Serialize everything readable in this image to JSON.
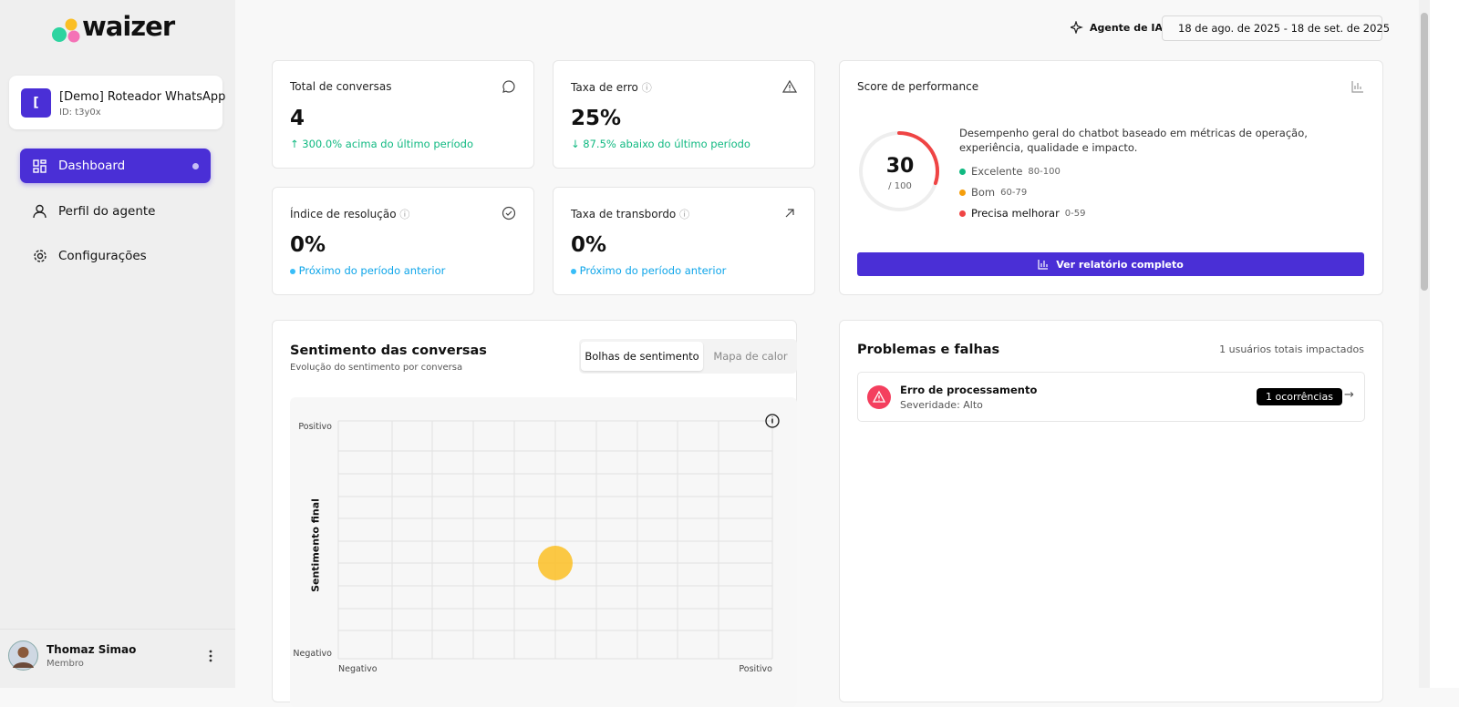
{
  "sidebar": {
    "logo": "waizer",
    "workspace": {
      "icon": "[",
      "name": "[Demo] Roteador WhatsApp",
      "id": "ID: t3y0x"
    },
    "nav": [
      "Dashboard",
      "Perfil do agente",
      "Configurações"
    ],
    "user": {
      "name": "Thomaz Simao",
      "role": "Membro"
    }
  },
  "header": {
    "ai_agent": "Agente de IA",
    "date_range": "18 de ago. de 2025 - 18 de set. de 2025"
  },
  "metrics": [
    {
      "title": "Total de conversas",
      "value": "4",
      "change": "300.0% acima do último período"
    },
    {
      "title": "Taxa de erro",
      "value": "25%",
      "change": "87.5% abaixo do último período"
    },
    {
      "title": "Índice de resolução",
      "value": "0%",
      "change": "Próximo do período anterior"
    },
    {
      "title": "Taxa de transbordo",
      "value": "0%",
      "change": "Próximo do período anterior"
    }
  ],
  "performance": {
    "title": "Score de performance",
    "score": 30,
    "score_max": {
      "value": 100,
      "label": "/ 100"
    },
    "description": "Desempenho geral do chatbot baseado em métricas de operação, experiência, qualidade e impacto.",
    "legend": [
      {
        "label": "Excelente",
        "range": "80-100",
        "color": "#10b981"
      },
      {
        "label": "Bom",
        "range": "60-79",
        "color": "#f59e0b"
      },
      {
        "label": "Precisa melhorar",
        "range": "0-59",
        "color": "#ef4444"
      }
    ],
    "button": "Ver relatório completo"
  },
  "sentiment": {
    "title": "Sentimento das conversas",
    "subtitle": "Evolução do sentimento por conversa",
    "tabs": [
      "Bolhas de sentimento",
      "Mapa de calor"
    ],
    "y_axis_label": "Sentimento final",
    "y_top": "Positivo",
    "y_bottom": "Negativo",
    "x_left": "Negativo",
    "x_right": "Positivo"
  },
  "problems": {
    "title": "Problemas e falhas",
    "summary": "1 usuários totais impactados",
    "items": [
      {
        "title": "Erro de processamento",
        "severity": "Severidade: Alto",
        "badge": "1 ocorrências"
      }
    ]
  }
}
